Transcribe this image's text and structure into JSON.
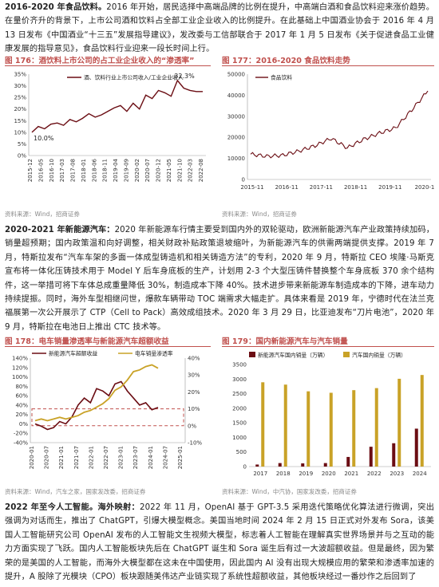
{
  "section1": {
    "heading": "2016-2020 年食品饮料。",
    "text": "2016 年开始，居民选择中高端品牌的比例在提升，中高端白酒和食品饮料迎来涨价趋势。在量价齐升的背景下，上市公司酒和饮料占全部工业企业收入的比例提升。在此基础上中国酒业协会于 2016 年 4 月 13 日发布《中国酒业“十三五”发展指导建议》，发改委与工信部联合于 2017 年 1 月 5 日发布《关于促进食品工业健康发展的指导意见》，食品饮料行业迎来一段长时间上行。"
  },
  "fig176": {
    "title": "图 176：酒饮料上市公司的占工业企业收入的“渗透率”",
    "source": "资料来源：Wind，招商证券",
    "legend": "酒、饮料行业上市公司收入/工业企业收入",
    "annot_high": "32.3%",
    "annot_low": "10.0%"
  },
  "fig177": {
    "title": "图 177：2016-2020 食品饮料走势",
    "source": "资料来源：Wind，招商证券",
    "legend": "食品饮料"
  },
  "section2": {
    "heading": "2020-2021 年新能源汽车：",
    "text": "2020 年新能源车行情主要受到国内外的双轮驱动，欧洲新能源汽车产业政策持续加码，销量超预期；国内政策温和向好调整，相关财政补贴政策退坡缩叶，为新能源汽车的供需两端提供支撑。2019 年 7 月，特斯拉发布“汽车车架的多面一体成型铸造机和相关铸造方法”的专利，2020 年 9 月，特斯拉 CEO 埃隆·马斯克宣布将一体化压铸技术用于 Model Y 后车身底板的生产，计划用 2-3 个大型压铸件替换整个车身底板 370 余个结构件，这一举措可将下车体总成重量降低 30%，制造成本下降 40%。技术进步带来新能源车制造成本的下降，进车动力持续提振。同时，海外车型相继问世，爆款车辆带动 TOC 端需求大幅走扩。具体来看是 2019 年，宁德时代在法兰克福展第一次公开展示了 CTP（Cell to Pack）高效成组技术。2020 年 3 月 29 日，比亚迪发布“刀片电池”，2020 年 9 月，特斯拉在电池日上推出 CTC 技术等。"
  },
  "fig178": {
    "title": "图 178：电车销量渗透率与新能源汽车超额收益",
    "source": "资料来源：Wind，汽车之家，国家发改委，招商证券",
    "legend1": "新能源汽车超额收益",
    "legend2": "电车销量渗透率"
  },
  "fig179": {
    "title": "图 179：国内新能源汽车与汽车销量",
    "source": "资料来源：Wind，中汽协，国家发改委，招商证券",
    "legend1": "新能源汽车国内销量（万辆）",
    "legend2": "汽车国内销量（万辆）"
  },
  "section3": {
    "heading": "2022 年至今人工智能。",
    "heading2": "海外映射：",
    "text": "2022 年 11 月，OpenAI 基于 GPT-3.5 采用迭代策略优化算法进行微调，突出强调为对话而生，推出了 ChatGPT，引爆大模型概念。美国当地时间 2024 年 2 月 15 日正式对外发布 Sora，该美国人工智能研究公司 OpenAI 发布的人工智能文生视频大模型，标志着人工智能在理解真实世界场景并与之互动的能力方面实现了飞跃。国内人工智能板块先后在 ChatGPT 诞生和 Sora 诞生后有过一大波超额收益。但是最终，因为繁荣的是美国的人工智能，而海外大模型都在这未在中国使用，因此国内 AI 没有出现大规模应用的繁荣和渗透率加速的提升，A 股除了光模块（CPO）板块跟随美伟达产业链实现了系统性超额收益，其他板块经过一番炒作之后回到了"
  },
  "chart_data": [
    {
      "type": "line",
      "title": "图 176：酒饮料上市公司的占工业企业收入的“渗透率”",
      "x": [
        "2015-12",
        "2016-03",
        "2016-06",
        "2016-09",
        "2016-12",
        "2017-03",
        "2017-06",
        "2017-09",
        "2017-12",
        "2018-03",
        "2018-06",
        "2018-09",
        "2018-12",
        "2019-03",
        "2019-06",
        "2019-09",
        "2019-12",
        "2020-03",
        "2020-06",
        "2020-09",
        "2020-12",
        "2021-03",
        "2021-06",
        "2021-09",
        "2021-12",
        "2022-03",
        "2022-06",
        "2022-09"
      ],
      "xticks": [
        "2015-12",
        "2016-05",
        "2016-10",
        "2017-03",
        "2017-08",
        "2018-01",
        "2018-06",
        "2018-11",
        "2019-04",
        "2019-09",
        "2020-02",
        "2020-07",
        "2020-12",
        "2021-05",
        "2021-10",
        "2022-03",
        "2022-08"
      ],
      "series": [
        {
          "name": "酒、饮料行业上市公司收入/工业企业收入",
          "values": [
            10.0,
            12.5,
            11.5,
            13.5,
            14.0,
            13.0,
            15.5,
            14.5,
            16.0,
            18.0,
            16.5,
            17.5,
            19.0,
            20.5,
            21.5,
            19.0,
            22.5,
            20.0,
            26.0,
            24.5,
            28.0,
            27.0,
            25.5,
            32.3,
            29.0,
            28.0,
            27.5,
            27.5
          ]
        }
      ],
      "ylim": [
        0,
        35
      ],
      "yticks": [
        "0%",
        "5%",
        "10%",
        "15%",
        "20%",
        "25%",
        "30%",
        "35%"
      ],
      "annotations": [
        "32.3%",
        "10.0%"
      ]
    },
    {
      "type": "line",
      "title": "图 177：2016-2020 食品饮料走势",
      "x": [
        "2015-11",
        "2016-05",
        "2016-11",
        "2017-05",
        "2017-11",
        "2018-05",
        "2018-11",
        "2019-05",
        "2019-11",
        "2020-05",
        "2020-11",
        "2021-01"
      ],
      "xticks": [
        "2015-11",
        "2016-11",
        "2017-11",
        "2018-11",
        "2019-11",
        "2020-1"
      ],
      "series": [
        {
          "name": "食品饮料",
          "values": [
            12000,
            11000,
            11500,
            13500,
            16000,
            19500,
            15000,
            19000,
            22000,
            24500,
            33000,
            42000
          ]
        }
      ],
      "ylim": [
        0,
        50000
      ],
      "yticks": [
        "0",
        "10000",
        "20000",
        "30000",
        "40000",
        "50000"
      ]
    },
    {
      "type": "line",
      "title": "图 178：电车销量渗透率与新能源汽车超额收益",
      "x": [
        "2019-01",
        "2019-04",
        "2019-07",
        "2019-10",
        "2020-01",
        "2020-04",
        "2020-07",
        "2020-10",
        "2021-01",
        "2021-04",
        "2021-07",
        "2021-10",
        "2022-01",
        "2022-04",
        "2022-07",
        "2022-10",
        "2023-01",
        "2023-04",
        "2023-07",
        "2023-10",
        "2024-01"
      ],
      "xticks": [
        "2020-01",
        "2020-07",
        "2021-01",
        "2021-07",
        "2022-01",
        "2022-07",
        "2023-01",
        "2023-07",
        "2024-01",
        "2024-07",
        "2025-01"
      ],
      "series": [
        {
          "name": "新能源汽车超额收益",
          "axis": "left",
          "values": [
            0,
            -5,
            -12,
            -8,
            5,
            0,
            15,
            40,
            55,
            45,
            75,
            70,
            60,
            85,
            90,
            70,
            55,
            40,
            45,
            30,
            35
          ]
        },
        {
          "name": "电车销量渗透率",
          "axis": "right",
          "values": [
            3,
            4,
            3,
            4,
            5,
            4,
            5,
            6,
            8,
            9,
            11,
            13,
            16,
            21,
            23,
            27,
            32,
            33,
            35,
            36,
            34
          ]
        }
      ],
      "ylim_left": [
        -40,
        140
      ],
      "yticks_left": [
        "-40%",
        "-20%",
        "0%",
        "20%",
        "40%",
        "60%",
        "80%",
        "100%",
        "120%",
        "140%"
      ],
      "ylim_right": [
        -10,
        40
      ],
      "yticks_right": [
        "-10%",
        "0%",
        "10%",
        "20%",
        "30%",
        "40%"
      ]
    },
    {
      "type": "bar",
      "title": "图 179：国内新能源汽车与汽车销量",
      "categories": [
        "2017",
        "2018",
        "2019",
        "2020",
        "2021",
        "2022",
        "2023",
        "2024"
      ],
      "series": [
        {
          "name": "新能源汽车国内销量（万辆）",
          "values": [
            70,
            120,
            110,
            120,
            330,
            680,
            800,
            1300
          ]
        },
        {
          "name": "汽车国内销量（万辆）",
          "values": [
            2890,
            2810,
            2580,
            2530,
            2620,
            2690,
            3010,
            3140
          ]
        }
      ],
      "ylim": [
        0,
        3500
      ],
      "yticks": [
        "0",
        "500",
        "1000",
        "1500",
        "2000",
        "2500",
        "3000",
        "3500"
      ]
    }
  ],
  "colors": {
    "accent": "#c0504d",
    "dark_red": "#6b0d13",
    "gold": "#c9a227"
  }
}
